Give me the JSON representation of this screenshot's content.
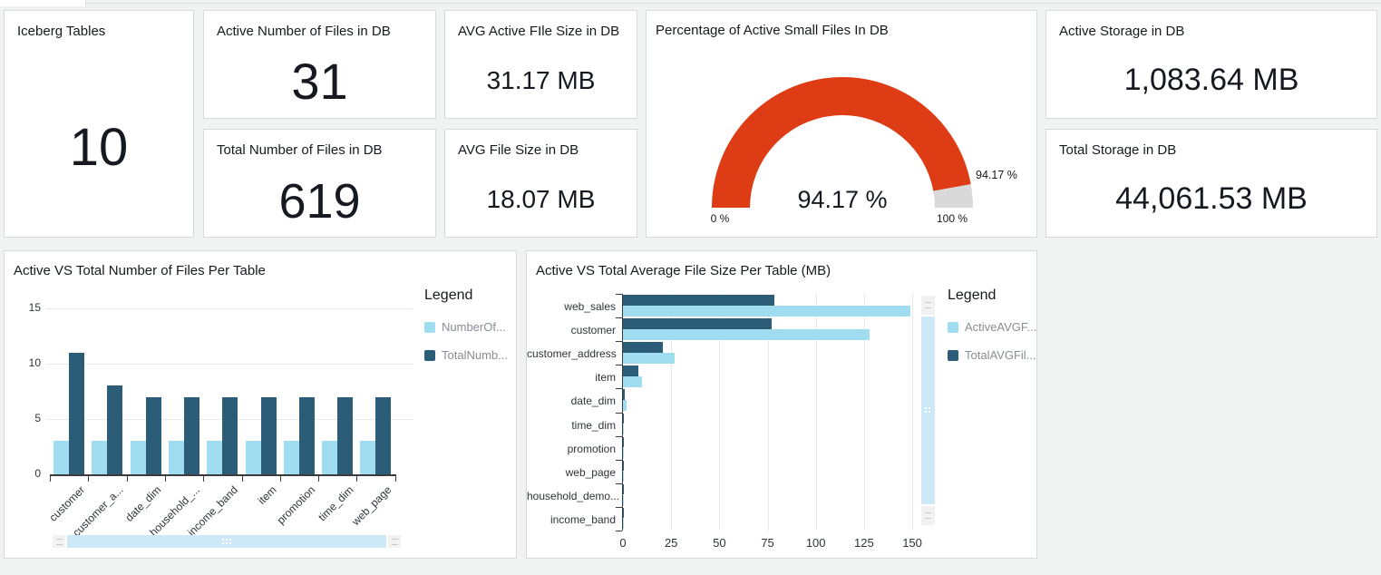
{
  "page": {
    "bg": "#F1F2F2",
    "card_bg": "#FFFFFF",
    "card_border": "#D9D9D9",
    "accent_light_blue": "#A0DDF1",
    "accent_dark_teal": "#2B5D78"
  },
  "kpi_cards": [
    {
      "title": "Iceberg Tables",
      "value": "10"
    },
    {
      "title": "Active Number of Files in DB",
      "value": "31"
    },
    {
      "title": "Total Number of Files in DB",
      "value": "619"
    },
    {
      "title": "AVG Active FIle Size in DB",
      "value": "31.17 MB"
    },
    {
      "title": "AVG File Size in DB",
      "value": "18.07 MB"
    },
    {
      "title": "Active Storage in DB",
      "value": "1,083.64 MB"
    },
    {
      "title": "Total Storage in DB",
      "value": "44,061.53 MB"
    }
  ],
  "chart_data": [
    {
      "type": "gauge",
      "title": "Percentage of Active Small Files In DB",
      "value": 94.17,
      "unit": "%",
      "min": 0,
      "max": 100,
      "min_label": "0 %",
      "max_label": "100 %",
      "value_label": "94.17 %",
      "callout_label": "94.17 %",
      "fill_color": "#DD3C14",
      "track_color": "#D9D9D9"
    },
    {
      "type": "bar",
      "orientation": "vertical",
      "title": "Active VS Total Number of Files Per Table",
      "categories": [
        "customer",
        "customer_a...",
        "date_dim",
        "household_...",
        "income_band",
        "item",
        "promotion",
        "time_dim",
        "web_page"
      ],
      "series": [
        {
          "name": "NumberOf...",
          "color": "#A0DDF1",
          "values": [
            3,
            3,
            3,
            3,
            3,
            3,
            3,
            3,
            3
          ]
        },
        {
          "name": "TotalNumb...",
          "color": "#2B5D78",
          "values": [
            11,
            8,
            7,
            7,
            7,
            7,
            7,
            7,
            7
          ]
        }
      ],
      "ylim": [
        0,
        15
      ],
      "yticks": [
        0,
        5,
        10,
        15
      ],
      "legend_title": "Legend",
      "legend_position": "right",
      "grid": true,
      "scrollbar": "horizontal"
    },
    {
      "type": "bar",
      "orientation": "horizontal",
      "title": "Active VS Total Average File Size Per Table (MB)",
      "categories": [
        "web_sales",
        "customer",
        "customer_address",
        "item",
        "date_dim",
        "time_dim",
        "promotion",
        "web_page",
        "household_demo...",
        "income_band"
      ],
      "series": [
        {
          "name": "ActiveAVGF...",
          "color": "#A0DDF1",
          "values": [
            149,
            128,
            27,
            10,
            2,
            0.5,
            0.4,
            0.4,
            0.4,
            0.4
          ]
        },
        {
          "name": "TotalAVGFil...",
          "color": "#2B5D78",
          "values": [
            78.5,
            77,
            20.7,
            8,
            0.8,
            0.5,
            0.5,
            0.5,
            0.5,
            0.5
          ]
        }
      ],
      "xlim": [
        0,
        160
      ],
      "xticks": [
        0,
        25,
        50,
        75,
        100,
        125,
        150
      ],
      "legend_title": "Legend",
      "legend_position": "right",
      "grid": true,
      "scrollbar": "vertical"
    }
  ]
}
